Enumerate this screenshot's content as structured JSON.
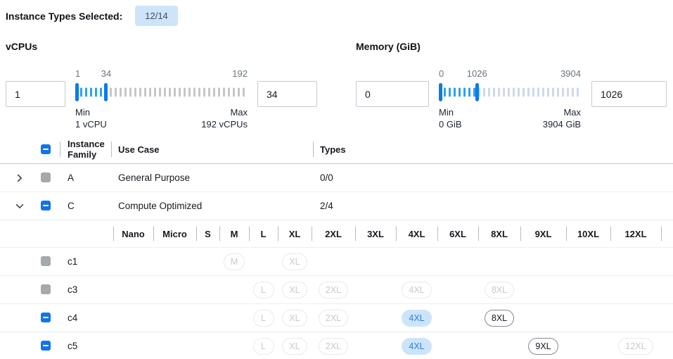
{
  "header": {
    "label": "Instance Types Selected:",
    "badge": "12/14"
  },
  "filters": [
    {
      "id": "vcpu",
      "title": "vCPUs",
      "min_input": "1",
      "max_input": "34",
      "scale": {
        "min": "1",
        "current": "34",
        "max": "192"
      },
      "min_label": "Min",
      "min_caption": "1 vCPU",
      "max_label": "Max",
      "max_caption": "192 vCPUs",
      "inactive_tick_color": "#c4c7ca"
    },
    {
      "id": "mem",
      "title": "Memory (GiB)",
      "min_input": "0",
      "max_input": "1026",
      "scale": {
        "min": "0",
        "current": "1026",
        "max": "3904"
      },
      "min_label": "Min",
      "min_caption": "0 GiB",
      "max_label": "Max",
      "max_caption": "3904 GiB",
      "inactive_tick_color": "#ccd9ee"
    }
  ],
  "table": {
    "columns": {
      "family": "Instance Family",
      "use_case": "Use Case",
      "types": "Types"
    },
    "header_checkbox": "indeterminate",
    "family_rows": [
      {
        "family": "A",
        "use_case": "General Purpose",
        "types": "0/0",
        "expanded": false,
        "checkbox": "disabled"
      },
      {
        "family": "C",
        "use_case": "Compute Optimized",
        "types": "2/4",
        "expanded": true,
        "checkbox": "indeterminate"
      }
    ],
    "size_columns": [
      "Nano",
      "Micro",
      "S",
      "M",
      "L",
      "XL",
      "2XL",
      "3XL",
      "4XL",
      "6XL",
      "8XL",
      "9XL",
      "10XL",
      "12XL"
    ],
    "type_rows": [
      {
        "name": "c1",
        "checkbox": "disabled",
        "badges": [
          {
            "size": "M",
            "state": "disabled"
          },
          {
            "size": "XL",
            "state": "disabled"
          }
        ]
      },
      {
        "name": "c3",
        "checkbox": "disabled",
        "badges": [
          {
            "size": "L",
            "state": "disabled"
          },
          {
            "size": "XL",
            "state": "disabled"
          },
          {
            "size": "2XL",
            "state": "disabled"
          },
          {
            "size": "4XL",
            "state": "disabled"
          },
          {
            "size": "8XL",
            "state": "disabled"
          }
        ]
      },
      {
        "name": "c4",
        "checkbox": "indeterminate",
        "badges": [
          {
            "size": "L",
            "state": "disabled"
          },
          {
            "size": "XL",
            "state": "disabled"
          },
          {
            "size": "2XL",
            "state": "disabled"
          },
          {
            "size": "4XL",
            "state": "selected"
          },
          {
            "size": "8XL",
            "state": "enabled"
          }
        ]
      },
      {
        "name": "c5",
        "checkbox": "indeterminate",
        "badges": [
          {
            "size": "L",
            "state": "disabled"
          },
          {
            "size": "XL",
            "state": "disabled"
          },
          {
            "size": "2XL",
            "state": "disabled"
          },
          {
            "size": "4XL",
            "state": "selected"
          },
          {
            "size": "9XL",
            "state": "enabled"
          },
          {
            "size": "12XL",
            "state": "disabled"
          }
        ]
      }
    ]
  },
  "colors": {
    "accent_blue": "#1274e8",
    "slider_handle": "#0d7ae6",
    "slider_active_tick": "#2ba1f2",
    "selected_pill_bg": "#cce4fa",
    "selected_pill_text": "#2b7de0",
    "badge_bg": "#cde4f9"
  }
}
